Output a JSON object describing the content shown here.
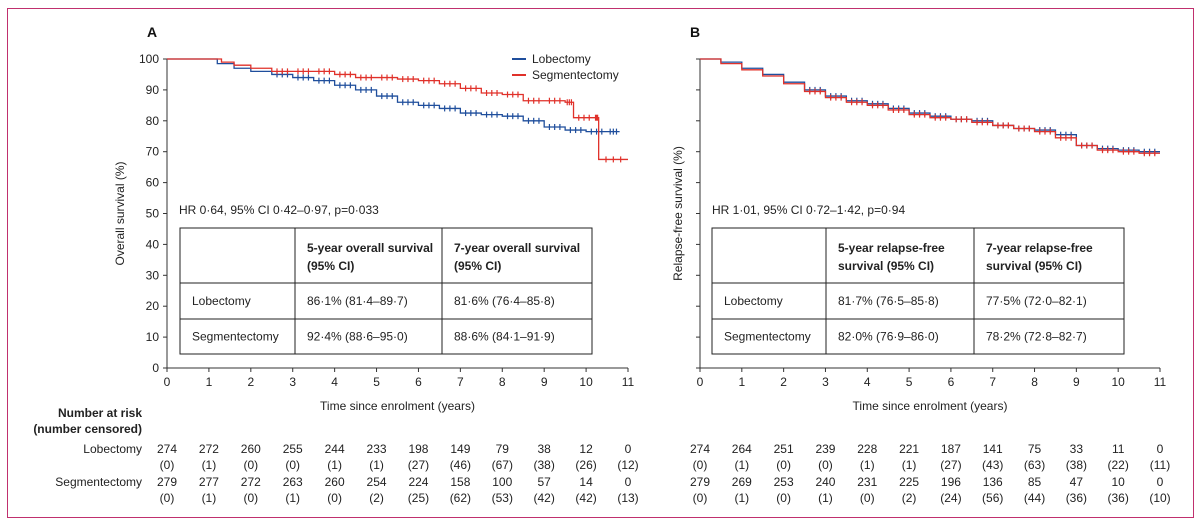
{
  "chart_data": [
    {
      "type": "line",
      "panel": "A",
      "ylabel": "Overall survival (%)",
      "xlabel": "Time since enrolment (years)",
      "xlim": [
        0,
        11
      ],
      "ylim": [
        0,
        100
      ],
      "x_ticks": [
        "0",
        "1",
        "2",
        "3",
        "4",
        "5",
        "6",
        "7",
        "8",
        "9",
        "10",
        "11"
      ],
      "y_ticks": [
        "0",
        "10",
        "20",
        "30",
        "40",
        "50",
        "60",
        "70",
        "80",
        "90",
        "100"
      ],
      "legend": [
        "Lobectomy",
        "Segmentectomy"
      ],
      "hr_text": "HR 0·64, 95% CI 0·42–0·97, p=0·033",
      "series": [
        {
          "name": "Lobectomy",
          "color": "#1f4e9c",
          "x": [
            0,
            0.8,
            1.2,
            1.6,
            2.0,
            2.5,
            3.0,
            3.5,
            4.0,
            4.5,
            5.0,
            5.5,
            6.0,
            6.5,
            7.0,
            7.5,
            8.0,
            8.5,
            9.0,
            9.5,
            10.0,
            10.5,
            10.8
          ],
          "y": [
            100,
            100,
            98.5,
            97,
            96,
            95,
            94,
            93,
            91.5,
            90,
            88,
            86,
            85,
            84,
            82.5,
            82,
            81.5,
            80,
            78,
            77,
            76.5,
            76.5,
            76.5
          ]
        },
        {
          "name": "Segmentectomy",
          "color": "#e0312a",
          "x": [
            0,
            1.0,
            1.3,
            1.6,
            2.0,
            2.5,
            3.0,
            3.5,
            4.0,
            4.5,
            5.0,
            5.5,
            6.0,
            6.5,
            7.0,
            7.5,
            8.0,
            8.5,
            9.0,
            9.5,
            9.7,
            10.2,
            10.3,
            11.0
          ],
          "y": [
            100,
            100,
            99,
            98,
            97,
            96,
            96,
            96,
            95,
            94,
            94,
            93.5,
            93,
            92,
            90.5,
            89,
            88.5,
            86.5,
            86.5,
            86,
            81,
            81,
            67.5,
            67.5
          ]
        }
      ],
      "table": {
        "headers": [
          "",
          "5-year overall survival (95% CI)",
          "7-year overall survival (95% CI)"
        ],
        "header_lines": [
          [
            "5-year overall survival",
            "(95% CI)"
          ],
          [
            "7-year overall survival",
            "(95% CI)"
          ]
        ],
        "rows": [
          [
            "Lobectomy",
            "86·1% (81·4–89·7)",
            "81·6% (76·4–85·8)"
          ],
          [
            "Segmentectomy",
            "92·4% (88·6–95·0)",
            "88·6% (84·1–91·9)"
          ]
        ]
      },
      "risk_table": {
        "title": [
          "Number at risk",
          "(number censored)"
        ],
        "rows": [
          {
            "label": "Lobectomy",
            "at_risk": [
              "274",
              "272",
              "260",
              "255",
              "244",
              "233",
              "198",
              "149",
              "79",
              "38",
              "12",
              "0"
            ],
            "censored": [
              "(0)",
              "(1)",
              "(0)",
              "(0)",
              "(1)",
              "(1)",
              "(27)",
              "(46)",
              "(67)",
              "(38)",
              "(26)",
              "(12)"
            ]
          },
          {
            "label": "Segmentectomy",
            "at_risk": [
              "279",
              "277",
              "272",
              "263",
              "260",
              "254",
              "224",
              "158",
              "100",
              "57",
              "14",
              "0"
            ],
            "censored": [
              "(0)",
              "(1)",
              "(0)",
              "(1)",
              "(0)",
              "(2)",
              "(25)",
              "(62)",
              "(53)",
              "(42)",
              "(42)",
              "(13)"
            ]
          }
        ]
      }
    },
    {
      "type": "line",
      "panel": "B",
      "ylabel": "Relapse-free survival (%)",
      "xlabel": "Time since enrolment (years)",
      "xlim": [
        0,
        11
      ],
      "ylim": [
        0,
        100
      ],
      "x_ticks": [
        "0",
        "1",
        "2",
        "3",
        "4",
        "5",
        "6",
        "7",
        "8",
        "9",
        "10",
        "11"
      ],
      "hr_text": "HR 1·01, 95% CI 0·72–1·42, p=0·94",
      "series": [
        {
          "name": "Lobectomy",
          "color": "#1f4e9c",
          "x": [
            0,
            0.5,
            1.0,
            1.5,
            2.0,
            2.5,
            3.0,
            3.5,
            4.0,
            4.5,
            5.0,
            5.5,
            6.0,
            6.5,
            7.0,
            7.5,
            8.0,
            8.5,
            9.0,
            9.5,
            10.0,
            10.5,
            11.0
          ],
          "y": [
            100,
            99,
            97,
            95,
            92.5,
            90,
            88,
            86.5,
            85.5,
            84,
            82.5,
            81.5,
            80.5,
            80,
            78.5,
            77.5,
            77,
            75.5,
            72,
            71,
            70.5,
            70,
            70
          ]
        },
        {
          "name": "Segmentectomy",
          "color": "#e0312a",
          "x": [
            0,
            0.5,
            1.0,
            1.5,
            2.0,
            2.5,
            3.0,
            3.5,
            4.0,
            4.5,
            5.0,
            5.5,
            6.0,
            6.5,
            7.0,
            7.5,
            8.0,
            8.5,
            9.0,
            9.5,
            10.0,
            10.5,
            11.0
          ],
          "y": [
            100,
            98.5,
            96.5,
            94.5,
            92,
            89.5,
            87.5,
            86,
            85,
            83.5,
            82,
            81,
            80.5,
            79.5,
            78.5,
            77.5,
            76.5,
            74.5,
            72,
            70.5,
            70,
            69.5,
            69.5
          ]
        }
      ],
      "table": {
        "headers": [
          "",
          "5-year relapse-free survival (95% CI)",
          "7-year relapse-free survival (95% CI)"
        ],
        "header_lines": [
          [
            "5-year relapse-free",
            "survival (95% CI)"
          ],
          [
            "7-year relapse-free",
            "survival (95% CI)"
          ]
        ],
        "rows": [
          [
            "Lobectomy",
            "81·7% (76·5–85·8)",
            "77·5% (72·0–82·1)"
          ],
          [
            "Segmentectomy",
            "82·0% (76·9–86·0)",
            "78·2% (72·8–82·7)"
          ]
        ]
      },
      "risk_table": {
        "rows": [
          {
            "label": "Lobectomy",
            "at_risk": [
              "274",
              "264",
              "251",
              "239",
              "228",
              "221",
              "187",
              "141",
              "75",
              "33",
              "11",
              "0"
            ],
            "censored": [
              "(0)",
              "(1)",
              "(0)",
              "(0)",
              "(1)",
              "(1)",
              "(27)",
              "(43)",
              "(63)",
              "(38)",
              "(22)",
              "(11)"
            ]
          },
          {
            "label": "Segmentectomy",
            "at_risk": [
              "279",
              "269",
              "253",
              "240",
              "231",
              "225",
              "196",
              "136",
              "85",
              "47",
              "10",
              "0"
            ],
            "censored": [
              "(0)",
              "(1)",
              "(0)",
              "(1)",
              "(0)",
              "(2)",
              "(24)",
              "(56)",
              "(44)",
              "(36)",
              "(36)",
              "(10)"
            ]
          }
        ]
      }
    }
  ]
}
